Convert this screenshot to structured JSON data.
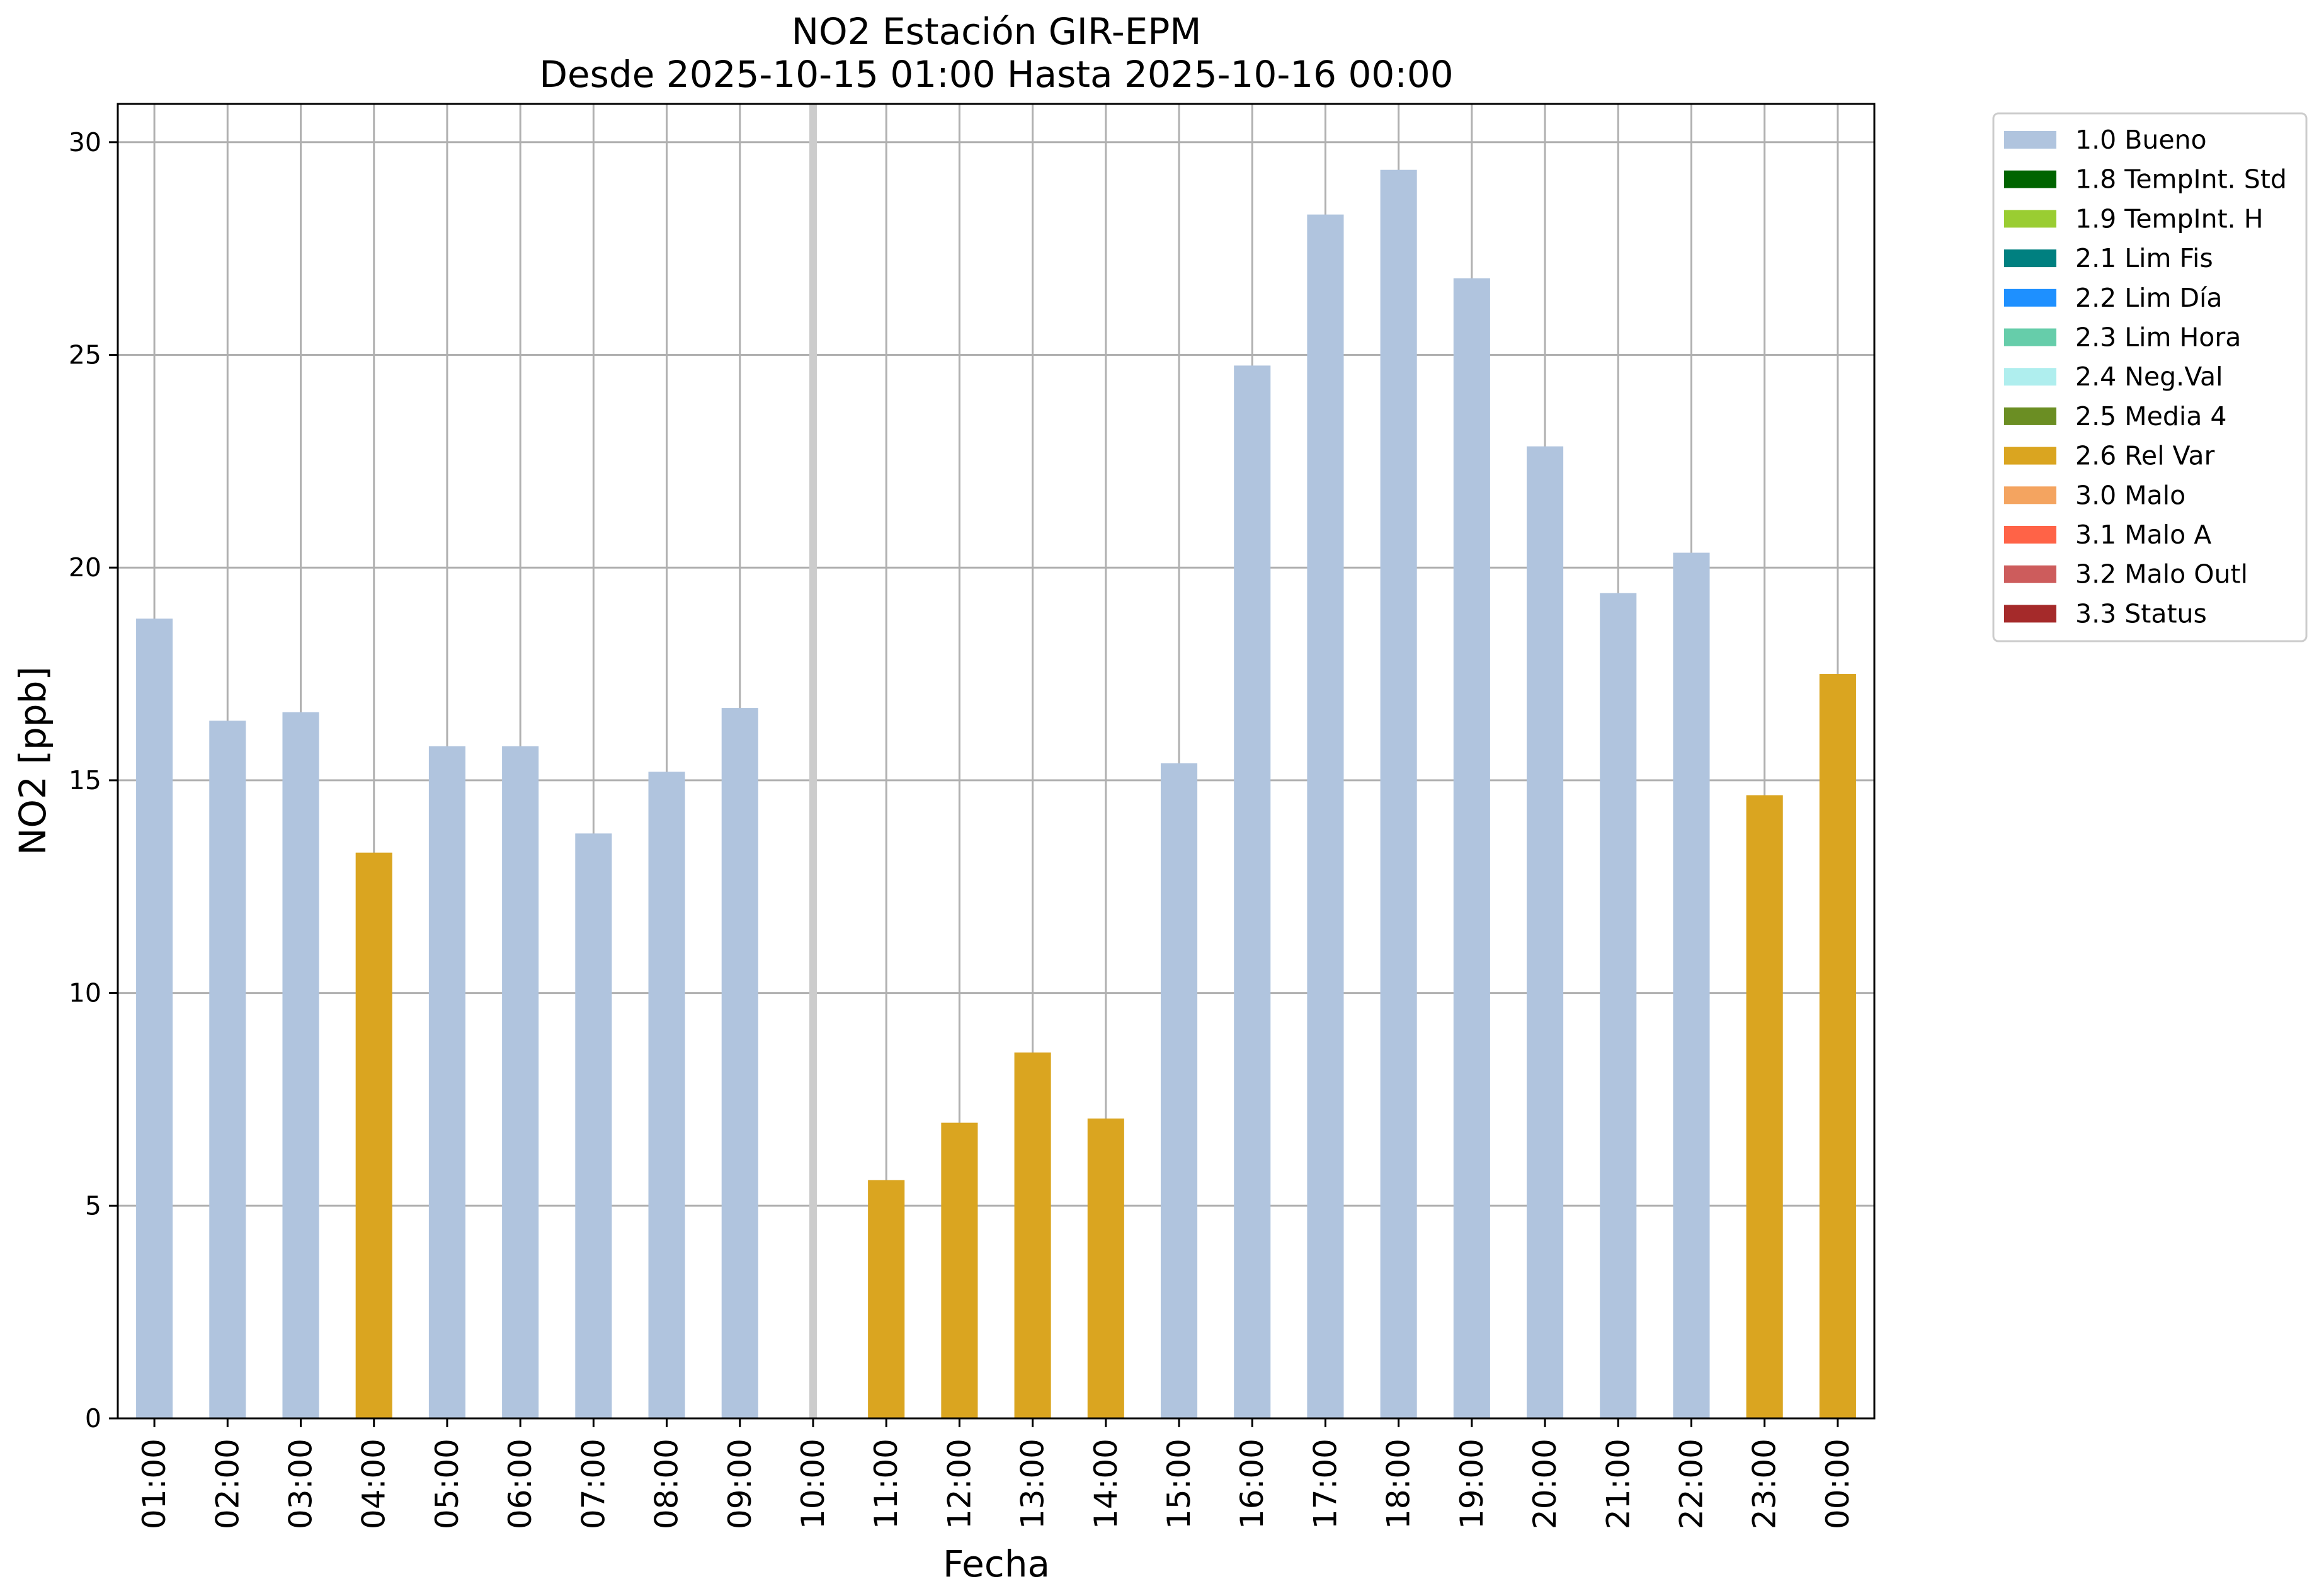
{
  "chart_data": {
    "type": "bar",
    "title": "NO2 Estación GIR-EPM",
    "subtitle": "Desde 2025-10-15 01:00 Hasta 2025-10-16 00:00",
    "xlabel": "Fecha",
    "ylabel": "NO2 [ppb]",
    "ylim": [
      0,
      30.9
    ],
    "yticks": [
      0,
      5,
      10,
      15,
      20,
      25,
      30
    ],
    "grid": true,
    "legend_position": "outside-top-right",
    "categories": [
      "01:00",
      "02:00",
      "03:00",
      "04:00",
      "05:00",
      "06:00",
      "07:00",
      "08:00",
      "09:00",
      "10:00",
      "11:00",
      "12:00",
      "13:00",
      "14:00",
      "15:00",
      "16:00",
      "17:00",
      "18:00",
      "19:00",
      "20:00",
      "21:00",
      "22:00",
      "23:00",
      "00:00"
    ],
    "values": [
      18.8,
      16.4,
      16.6,
      13.3,
      15.8,
      15.8,
      13.75,
      15.2,
      16.7,
      null,
      5.6,
      6.95,
      8.6,
      7.05,
      15.4,
      24.75,
      28.3,
      29.35,
      26.8,
      22.85,
      19.4,
      20.35,
      14.65,
      17.5
    ],
    "flags": [
      "1.0 Bueno",
      "1.0 Bueno",
      "1.0 Bueno",
      "2.6 Rel Var",
      "1.0 Bueno",
      "1.0 Bueno",
      "1.0 Bueno",
      "1.0 Bueno",
      "1.0 Bueno",
      null,
      "2.6 Rel Var",
      "2.6 Rel Var",
      "2.6 Rel Var",
      "2.6 Rel Var",
      "1.0 Bueno",
      "1.0 Bueno",
      "1.0 Bueno",
      "1.0 Bueno",
      "1.0 Bueno",
      "1.0 Bueno",
      "1.0 Bueno",
      "1.0 Bueno",
      "2.6 Rel Var",
      "2.6 Rel Var"
    ],
    "missing_marker_category": "10:00",
    "legend": [
      {
        "label": "1.0 Bueno",
        "color": "#b0c4de"
      },
      {
        "label": "1.8 TempInt. Std",
        "color": "#006400"
      },
      {
        "label": "1.9 TempInt. H",
        "color": "#9acd32"
      },
      {
        "label": "2.1 Lim Fis",
        "color": "#008080"
      },
      {
        "label": "2.2 Lim Día",
        "color": "#1e90ff"
      },
      {
        "label": "2.3 Lim Hora",
        "color": "#66cdaa"
      },
      {
        "label": "2.4 Neg.Val",
        "color": "#afeeee"
      },
      {
        "label": "2.5 Media 4",
        "color": "#6b8e23"
      },
      {
        "label": "2.6 Rel Var",
        "color": "#daa520"
      },
      {
        "label": "3.0 Malo",
        "color": "#f4a460"
      },
      {
        "label": "3.1 Malo A",
        "color": "#ff6347"
      },
      {
        "label": "3.2 Malo Outl",
        "color": "#cd5c5c"
      },
      {
        "label": "3.3 Status",
        "color": "#a52a2a"
      }
    ],
    "colors": {
      "grid": "#b0b0b0",
      "missing_marker": "#cccccc"
    }
  }
}
